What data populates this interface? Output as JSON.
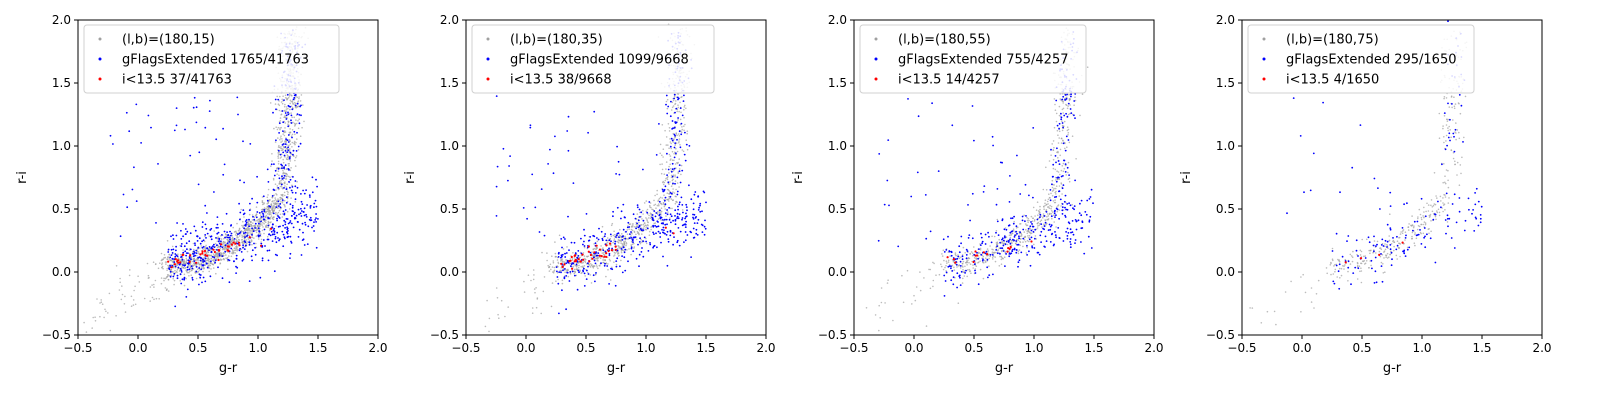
{
  "chart_data": [
    {
      "type": "scatter",
      "xlabel": "g-r",
      "ylabel": "r-i",
      "xlim": [
        -0.5,
        2.0
      ],
      "ylim": [
        -0.5,
        2.0
      ],
      "xticks": [
        "−0.5",
        "0.0",
        "0.5",
        "1.0",
        "1.5",
        "2.0"
      ],
      "yticks": [
        "−0.5",
        "0.0",
        "0.5",
        "1.0",
        "1.5",
        "2.0"
      ],
      "legend_position": "upper-left",
      "series": [
        {
          "name": "(l,b)=(180,15)",
          "color": "#a0a0a0",
          "count": 41763
        },
        {
          "name": "gFlagsExtended 1765/41763",
          "color": "#0000ff",
          "count": 1765
        },
        {
          "name": "i<13.5 37/41763",
          "color": "#ff0000",
          "count": 37
        }
      ]
    },
    {
      "type": "scatter",
      "xlabel": "g-r",
      "ylabel": "r-i",
      "xlim": [
        -0.5,
        2.0
      ],
      "ylim": [
        -0.5,
        2.0
      ],
      "xticks": [
        "−0.5",
        "0.0",
        "0.5",
        "1.0",
        "1.5",
        "2.0"
      ],
      "yticks": [
        "−0.5",
        "0.0",
        "0.5",
        "1.0",
        "1.5",
        "2.0"
      ],
      "legend_position": "upper-left",
      "series": [
        {
          "name": "(l,b)=(180,35)",
          "color": "#a0a0a0",
          "count": 9668
        },
        {
          "name": "gFlagsExtended 1099/9668",
          "color": "#0000ff",
          "count": 1099
        },
        {
          "name": "i<13.5 38/9668",
          "color": "#ff0000",
          "count": 38
        }
      ]
    },
    {
      "type": "scatter",
      "xlabel": "g-r",
      "ylabel": "r-i",
      "xlim": [
        -0.5,
        2.0
      ],
      "ylim": [
        -0.5,
        2.0
      ],
      "xticks": [
        "−0.5",
        "0.0",
        "0.5",
        "1.0",
        "1.5",
        "2.0"
      ],
      "yticks": [
        "−0.5",
        "0.0",
        "0.5",
        "1.0",
        "1.5",
        "2.0"
      ],
      "legend_position": "upper-left",
      "series": [
        {
          "name": "(l,b)=(180,55)",
          "color": "#a0a0a0",
          "count": 4257
        },
        {
          "name": "gFlagsExtended 755/4257",
          "color": "#0000ff",
          "count": 755
        },
        {
          "name": "i<13.5 14/4257",
          "color": "#ff0000",
          "count": 14
        }
      ]
    },
    {
      "type": "scatter",
      "xlabel": "g-r",
      "ylabel": "r-i",
      "xlim": [
        -0.5,
        2.0
      ],
      "ylim": [
        -0.5,
        2.0
      ],
      "xticks": [
        "−0.5",
        "0.0",
        "0.5",
        "1.0",
        "1.5",
        "2.0"
      ],
      "yticks": [
        "−0.5",
        "0.0",
        "0.5",
        "1.0",
        "1.5",
        "2.0"
      ],
      "legend_position": "upper-left",
      "series": [
        {
          "name": "(l,b)=(180,75)",
          "color": "#a0a0a0",
          "count": 1650
        },
        {
          "name": "gFlagsExtended 295/1650",
          "color": "#0000ff",
          "count": 295
        },
        {
          "name": "i<13.5 4/1650",
          "color": "#ff0000",
          "count": 4
        }
      ]
    }
  ]
}
